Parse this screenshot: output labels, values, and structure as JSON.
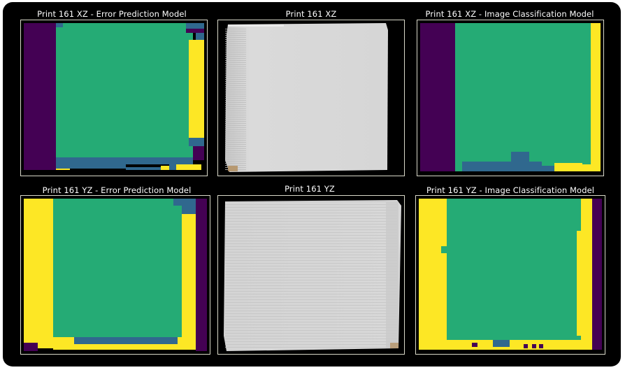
{
  "colors": {
    "background": "#000000",
    "purple": "#440154",
    "teal": "#30688e",
    "green": "#25ab75",
    "yellow": "#fde725",
    "print_surface": "#d9d9d9"
  },
  "panels": [
    {
      "key": "xz_error_prediction",
      "title": "Print 161 XZ - Error Prediction Model"
    },
    {
      "key": "xz_photo",
      "title": "Print 161 XZ"
    },
    {
      "key": "xz_image_classification",
      "title": "Print 161 XZ - Image Classification Model"
    },
    {
      "key": "yz_error_prediction",
      "title": "Print 161 YZ - Error Prediction Model"
    },
    {
      "key": "yz_photo",
      "title": "Print 161 YZ"
    },
    {
      "key": "yz_image_classification",
      "title": "Print 161 YZ - Image Classification Model"
    }
  ]
}
